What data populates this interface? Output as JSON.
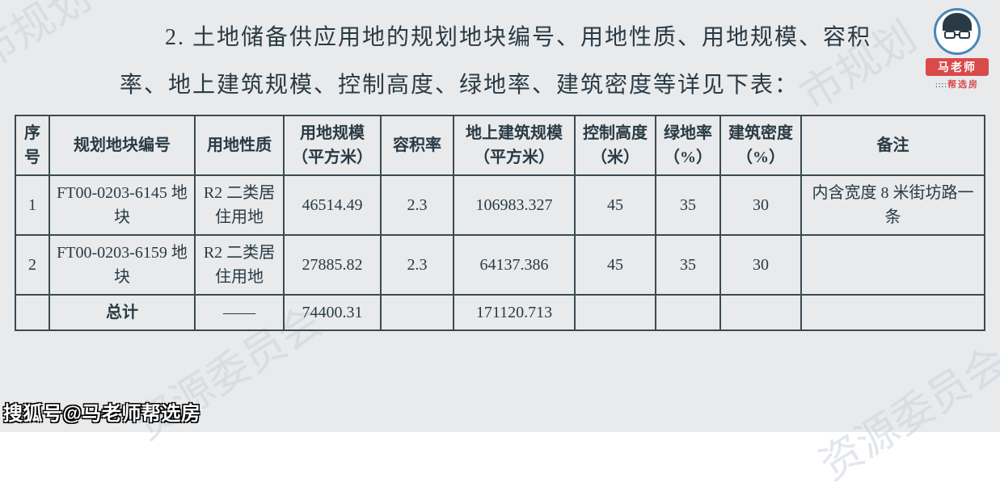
{
  "watermark_text": "资源委员会",
  "watermark_text2": "市规划",
  "paragraph": "2. 土地储备供应用地的规划地块编号、用地性质、用地规模、容积率、地上建筑规模、控制高度、绿地率、建筑密度等详见下表：",
  "table": {
    "columns": [
      "序号",
      "规划地块编号",
      "用地性质",
      "用地规模（平方米）",
      "容积率",
      "地上建筑规模（平方米）",
      "控制高度（米）",
      "绿地率（%）",
      "建筑密度（%）",
      "备注"
    ],
    "rows": [
      {
        "seq": "1",
        "block": "FT00-0203-6145 地块",
        "type": "R2 二类居住用地",
        "area": "46514.49",
        "far": "2.3",
        "floor": "106983.327",
        "height": "45",
        "green": "35",
        "density": "30",
        "note": "内含宽度 8 米街坊路一条"
      },
      {
        "seq": "2",
        "block": "FT00-0203-6159 地块",
        "type": "R2 二类居住用地",
        "area": "27885.82",
        "far": "2.3",
        "floor": "64137.386",
        "height": "45",
        "green": "35",
        "density": "30",
        "note": ""
      },
      {
        "seq": "",
        "block": "总计",
        "type": "——",
        "area": "74400.31",
        "far": "",
        "floor": "171120.713",
        "height": "",
        "green": "",
        "density": "",
        "note": ""
      }
    ],
    "border_color": "#3a4a52",
    "text_color": "#2a3a44",
    "header_fontsize": 20,
    "cell_fontsize": 20
  },
  "logo": {
    "name": "马老师",
    "sub_prefix": "::::",
    "sub_main": "帮选房"
  },
  "footer_credit": "搜狐号@马老师帮选房",
  "colors": {
    "page_bg": "#e8eaec",
    "watermark": "rgba(200,208,216,0.5)",
    "text": "#2a3a44",
    "logo_accent": "#d94a4a",
    "logo_ring": "#4a86b4"
  }
}
